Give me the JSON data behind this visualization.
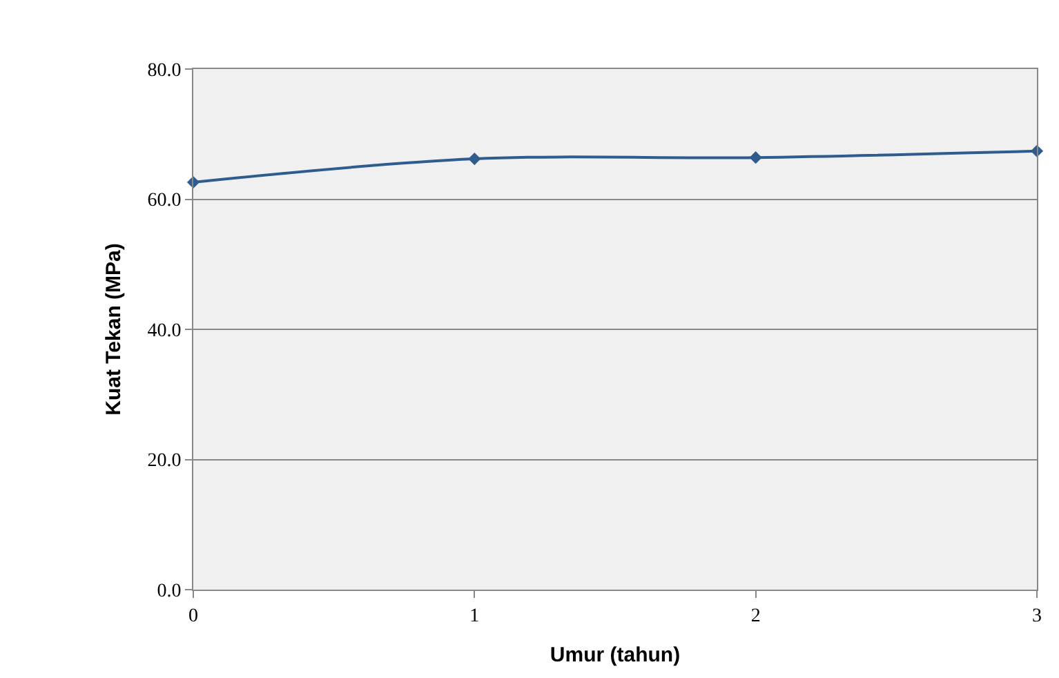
{
  "chart_data": {
    "type": "line",
    "xlabel": "Umur (tahun)",
    "ylabel": "Kuat Tekan (MPa)",
    "x": [
      0,
      1,
      2,
      3
    ],
    "series": [
      {
        "color": "#2e5c8f",
        "values": [
          62.6,
          66.2,
          66.4,
          67.4
        ]
      }
    ],
    "xlim": [
      0,
      3
    ],
    "xticks": [
      0,
      1,
      2,
      3
    ],
    "ylim": [
      0,
      80
    ],
    "yticks": [
      {
        "value": 0,
        "label": "0.0"
      },
      {
        "value": 20,
        "label": "20.0"
      },
      {
        "value": 40,
        "label": "40.0"
      },
      {
        "value": 60,
        "label": "60.0"
      },
      {
        "value": 80,
        "label": "80.0"
      }
    ],
    "grid": "y",
    "marker": "diamond",
    "line_style": "solid"
  }
}
